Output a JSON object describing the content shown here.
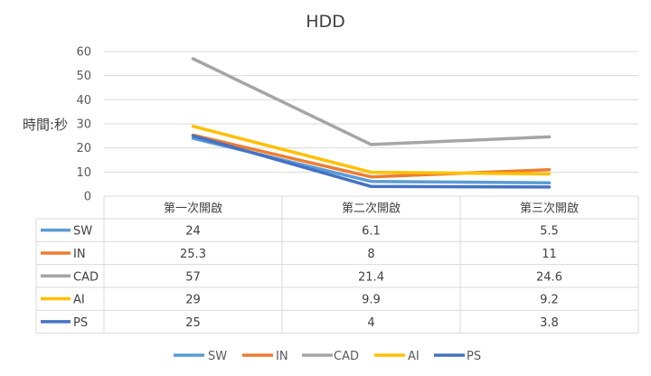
{
  "chart_data": {
    "type": "line",
    "title": "HDD",
    "ylabel": "時間:秒",
    "xlabel": "",
    "categories": [
      "第一次開啟",
      "第二次開啟",
      "第三次開啟"
    ],
    "ylim": [
      0,
      60
    ],
    "yticks": [
      0,
      10,
      20,
      30,
      40,
      50,
      60
    ],
    "grid": true,
    "legend": "bottom",
    "data_table": true,
    "series": [
      {
        "name": "SW",
        "color": "#5B9BD5",
        "values": [
          24,
          6.1,
          5.5
        ]
      },
      {
        "name": "IN",
        "color": "#ED7D31",
        "values": [
          25.3,
          8,
          11
        ]
      },
      {
        "name": "CAD",
        "color": "#A5A5A5",
        "values": [
          57,
          21.4,
          24.6
        ]
      },
      {
        "name": "AI",
        "color": "#FFC000",
        "values": [
          29,
          9.9,
          9.2
        ]
      },
      {
        "name": "PS",
        "color": "#4472C4",
        "values": [
          25,
          4,
          3.8
        ]
      }
    ]
  }
}
